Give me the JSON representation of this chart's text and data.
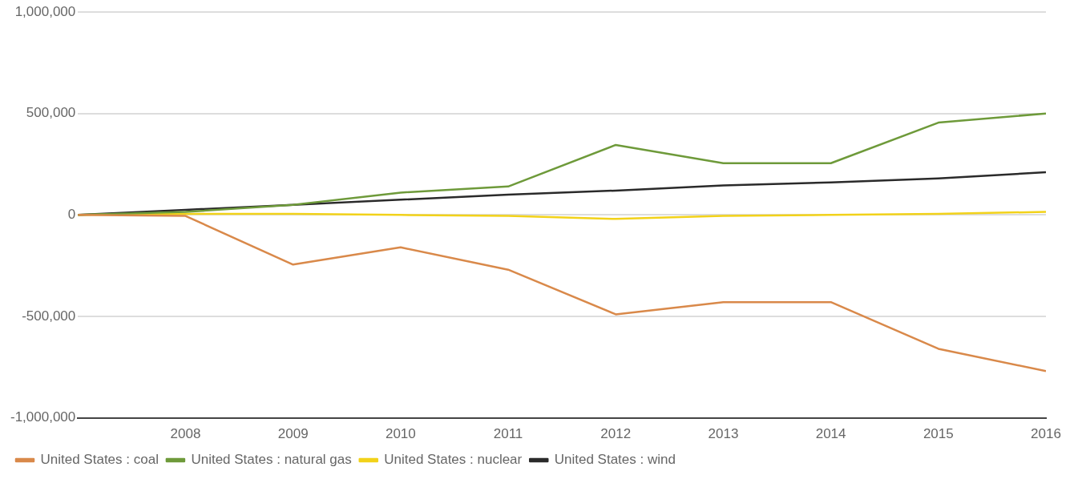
{
  "chart_data": {
    "type": "line",
    "x": [
      2007,
      2008,
      2009,
      2010,
      2011,
      2012,
      2013,
      2014,
      2015,
      2016
    ],
    "xlim": [
      2007,
      2016
    ],
    "xticks": [
      2008,
      2009,
      2010,
      2011,
      2012,
      2013,
      2014,
      2015,
      2016
    ],
    "ylim": [
      -1000000,
      1000000
    ],
    "yticks": [
      {
        "value": -1000000,
        "label": "-1,000,000"
      },
      {
        "value": -500000,
        "label": "-500,000"
      },
      {
        "value": 0,
        "label": "0"
      },
      {
        "value": 500000,
        "label": "500,000"
      },
      {
        "value": 1000000,
        "label": "1,000,000"
      }
    ],
    "grid": "y",
    "legend": "bottom left",
    "marker": "none",
    "line_style": "solid",
    "series": [
      {
        "name": "United States : coal",
        "color": "#d9894a",
        "values": [
          0,
          -5000,
          -245000,
          -160000,
          -270000,
          -490000,
          -430000,
          -430000,
          -660000,
          -770000
        ]
      },
      {
        "name": "United States : natural gas",
        "color": "#6e9a3a",
        "values": [
          0,
          15000,
          50000,
          110000,
          140000,
          345000,
          255000,
          255000,
          455000,
          500000
        ]
      },
      {
        "name": "United States : nuclear",
        "color": "#f2d21a",
        "values": [
          0,
          5000,
          5000,
          0,
          -5000,
          -20000,
          -5000,
          0,
          5000,
          15000
        ]
      },
      {
        "name": "United States : wind",
        "color": "#2a2a2a",
        "values": [
          0,
          25000,
          50000,
          75000,
          100000,
          120000,
          145000,
          160000,
          180000,
          210000
        ]
      }
    ]
  }
}
